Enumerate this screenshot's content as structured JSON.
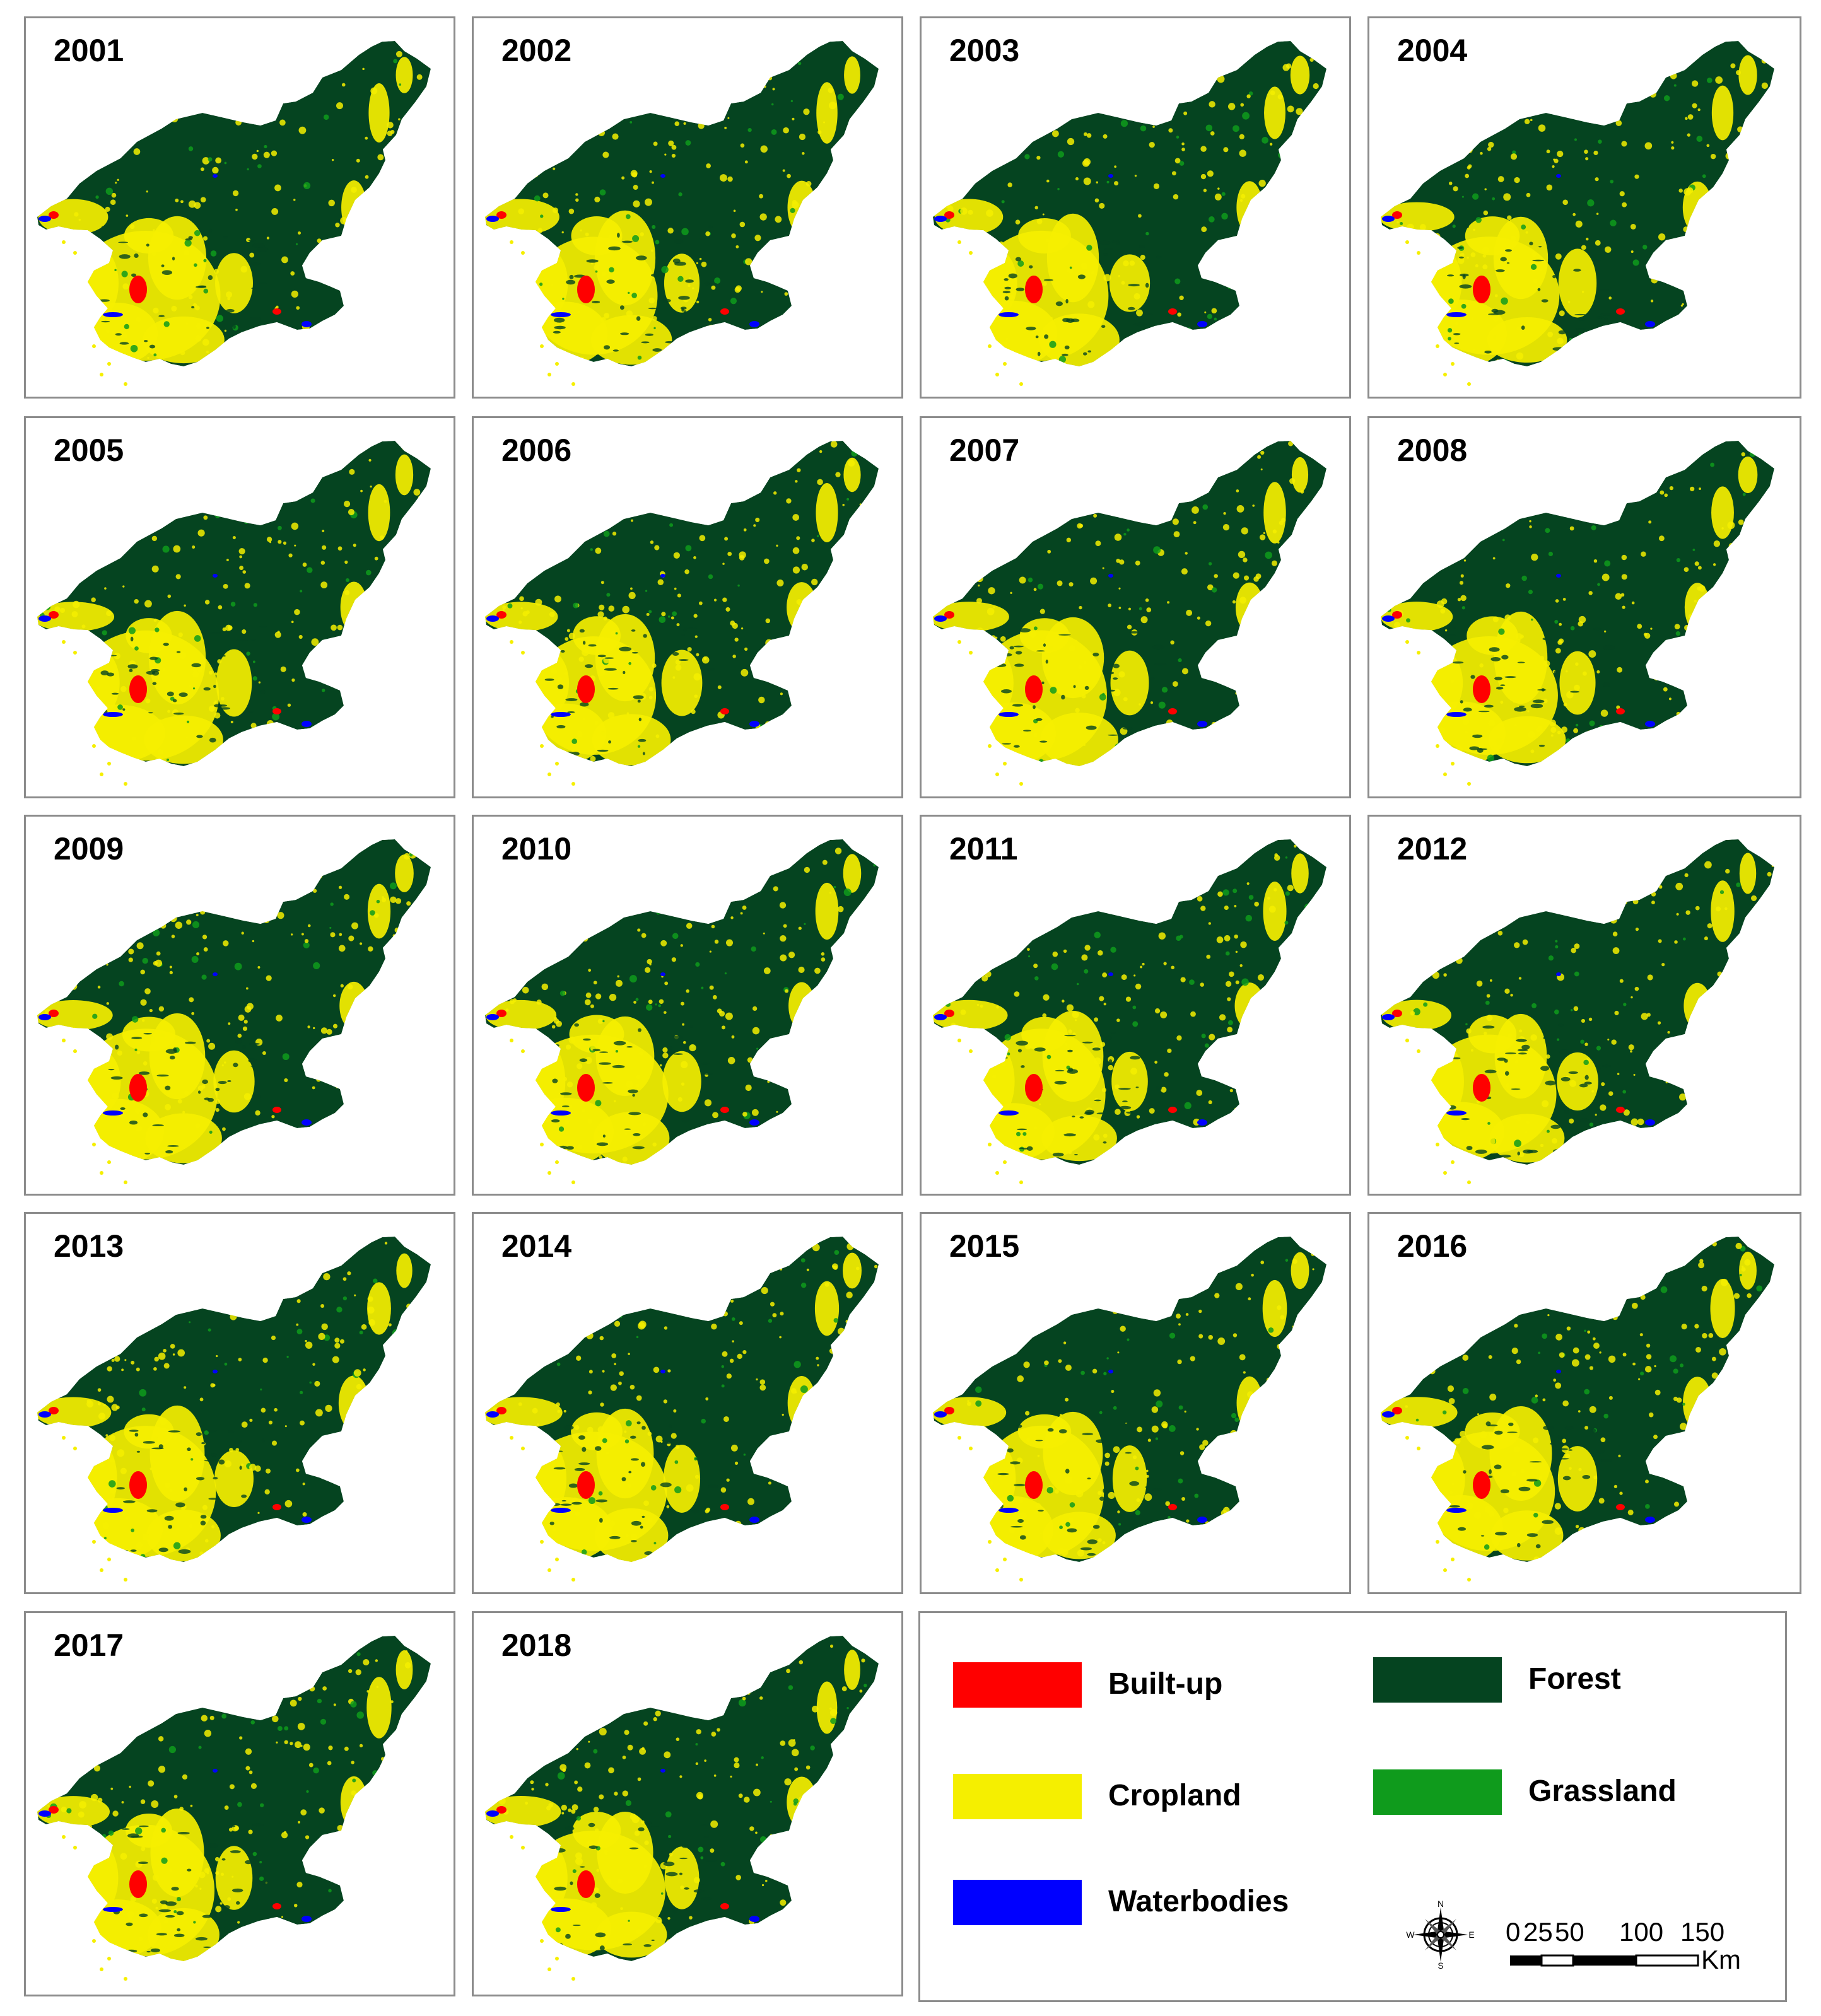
{
  "panels": [
    {
      "year": "2001"
    },
    {
      "year": "2002"
    },
    {
      "year": "2003"
    },
    {
      "year": "2004"
    },
    {
      "year": "2005"
    },
    {
      "year": "2006"
    },
    {
      "year": "2007"
    },
    {
      "year": "2008"
    },
    {
      "year": "2009"
    },
    {
      "year": "2010"
    },
    {
      "year": "2011"
    },
    {
      "year": "2012"
    },
    {
      "year": "2013"
    },
    {
      "year": "2014"
    },
    {
      "year": "2015"
    },
    {
      "year": "2016"
    },
    {
      "year": "2017"
    },
    {
      "year": "2018"
    }
  ],
  "legend": {
    "items": [
      {
        "label": "Built-up",
        "color": "#ff0000"
      },
      {
        "label": "Cropland",
        "color": "#f5ef00"
      },
      {
        "label": "Waterbodies",
        "color": "#0000ff"
      },
      {
        "label": "Forest",
        "color": "#054420"
      },
      {
        "label": "Grassland",
        "color": "#0f9b1c"
      }
    ]
  },
  "scale_bar": {
    "ticks": [
      "0",
      "25",
      "50",
      "100",
      "150"
    ],
    "unit": "Km"
  },
  "north_arrow": {
    "icon": "compass-rose-icon",
    "directions": [
      "N",
      "E",
      "S",
      "W"
    ]
  }
}
